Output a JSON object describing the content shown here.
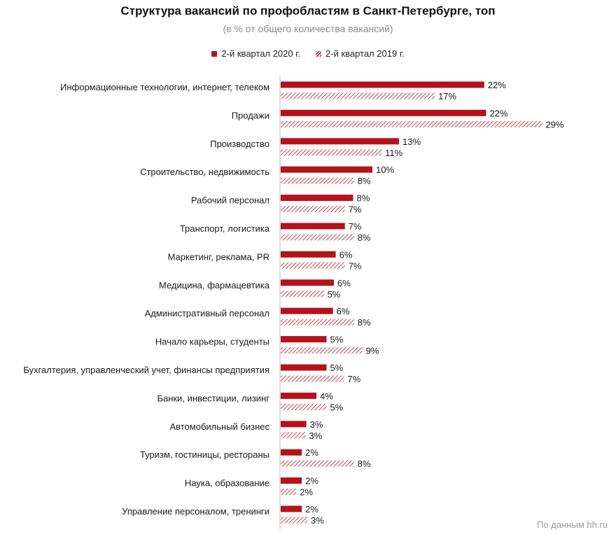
{
  "chart_data": {
    "type": "bar",
    "orientation": "horizontal",
    "title": "Структура вакансий по профобластям в Санкт-Петербурге, топ",
    "subtitle": "(в % от общего количества вакансий)",
    "categories": [
      "Информационные технологии, интернет, телеком",
      "Продажи",
      "Производство",
      "Строительство, недвижимость",
      "Рабочий персонал",
      "Транспорт, логистика",
      "Маркетинг, реклама, PR",
      "Медицина, фармацевтика",
      "Административный персонал",
      "Начало карьеры, студенты",
      "Бухгалтерия, управленческий учет, финансы предприятия",
      "Банки, инвестиции, лизинг",
      "Автомобильный бизнес",
      "Туризм, гостиницы, рестораны",
      "Наука, образование",
      "Управление персоналом, тренинги"
    ],
    "series": [
      {
        "name": "2-й квартал 2020 г.",
        "style": "solid",
        "color": "#b5121b",
        "values": [
          22.2,
          22.4,
          12.9,
          10.0,
          7.9,
          7.0,
          6.0,
          5.8,
          5.7,
          5.0,
          5.0,
          3.9,
          2.8,
          2.3,
          2.3,
          2.3
        ],
        "labels": [
          "22%",
          "22%",
          "13%",
          "10%",
          "8%",
          "7%",
          "6%",
          "6%",
          "6%",
          "5%",
          "5%",
          "4%",
          "3%",
          "2%",
          "2%",
          "2%"
        ]
      },
      {
        "name": "2-й квартал 2019 г.",
        "style": "hatched",
        "color": "#b5121b",
        "values": [
          16.8,
          28.5,
          11.0,
          8.0,
          7.0,
          8.0,
          7.0,
          4.7,
          8.0,
          8.9,
          6.9,
          5.0,
          2.7,
          8.0,
          1.7,
          2.9
        ],
        "labels": [
          "17%",
          "29%",
          "11%",
          "8%",
          "7%",
          "8%",
          "7%",
          "5%",
          "8%",
          "9%",
          "7%",
          "5%",
          "3%",
          "8%",
          "2%",
          "3%"
        ]
      }
    ],
    "xlim": [
      0,
      30
    ],
    "xlabel": "",
    "ylabel": "",
    "grid": false,
    "legend_position": "top-center",
    "source": "По данным hh.ru"
  }
}
